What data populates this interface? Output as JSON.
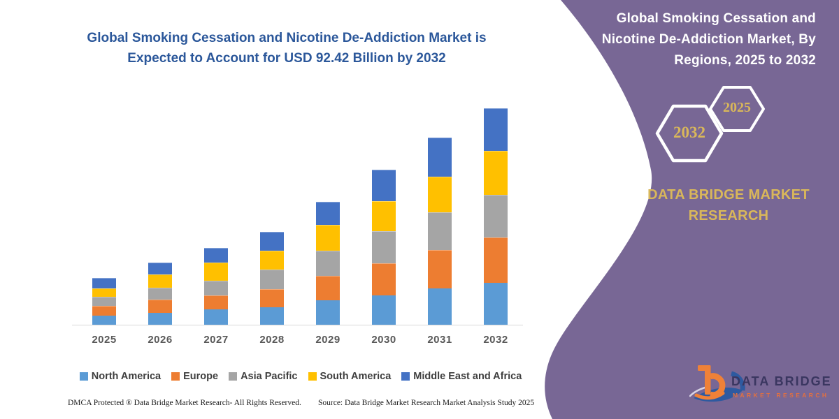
{
  "header": {
    "title_line1": "Global Smoking Cessation and Nicotine De-Addiction Market is",
    "title_line2": "Expected to Account for USD 92.42 Billion by 2032"
  },
  "chart_data": {
    "type": "bar",
    "stacked": true,
    "title": "Global Smoking Cessation and Nicotine De-Addiction Market is Expected to Account for USD 92.42 Billion by 2032",
    "unit": "USD Billion",
    "categories": [
      "2025",
      "2026",
      "2027",
      "2028",
      "2029",
      "2030",
      "2031",
      "2032"
    ],
    "series": [
      {
        "name": "North America",
        "color": "#5B9BD5",
        "values": [
          4.0,
          5.0,
          6.6,
          7.6,
          10.4,
          12.6,
          15.4,
          17.8
        ]
      },
      {
        "name": "Europe",
        "color": "#ED7D31",
        "values": [
          4.0,
          5.7,
          5.9,
          7.7,
          10.4,
          13.7,
          16.4,
          19.3
        ]
      },
      {
        "name": "Asia Pacific",
        "color": "#A5A5A5",
        "values": [
          4.0,
          5.0,
          6.2,
          8.2,
          10.9,
          13.6,
          16.1,
          18.4
        ]
      },
      {
        "name": "South America",
        "color": "#FFC000",
        "values": [
          3.5,
          5.7,
          7.8,
          8.1,
          10.9,
          12.9,
          15.2,
          18.6
        ]
      },
      {
        "name": "Middle East and Africa",
        "color": "#4472C4",
        "values": [
          4.5,
          5.0,
          6.4,
          8.1,
          9.9,
          13.2,
          16.6,
          18.3
        ]
      }
    ],
    "annotation": "2032 total = USD 92.42 Billion",
    "legend_position": "bottom",
    "axes": {
      "y_axis_visible": false,
      "gridlines": false,
      "x_labels_visible": true
    },
    "ylim": [
      0,
      100
    ]
  },
  "footer": {
    "left": "DMCA Protected ® Data Bridge Market Research-  All Rights Reserved.",
    "right": "Source: Data Bridge Market Research  Market Analysis Study 2025"
  },
  "side_panel": {
    "background": "#786795",
    "title": "Global Smoking Cessation and Nicotine De-Addiction Market, By Regions, 2025 to 2032",
    "hexagon_large_label": "2032",
    "hexagon_small_label": "2025",
    "gold": "#d9b75a",
    "brand_line1": "DATA BRIDGE MARKET",
    "brand_line2": "RESEARCH",
    "logo_text_top": "DATA BRIDGE",
    "logo_text_bottom": "MARKET RESEARCH"
  },
  "colors": {
    "title_blue": "#2b579a",
    "axis_label": "#595959",
    "legend_text": "#3f3f3f",
    "axis_line": "#d9d9d9"
  }
}
